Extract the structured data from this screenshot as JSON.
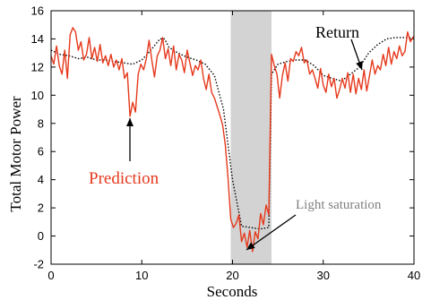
{
  "chart_data": {
    "type": "line",
    "title": "",
    "xlabel": "Seconds",
    "ylabel": "Total Motor Power",
    "xlim": [
      0,
      40
    ],
    "ylim": [
      -2,
      16
    ],
    "x_ticks": [
      0,
      10,
      20,
      30,
      40
    ],
    "y_ticks": [
      -2,
      0,
      2,
      4,
      6,
      8,
      10,
      12,
      14,
      16
    ],
    "grid": false,
    "legend": "none",
    "shaded_region": {
      "x_start": 19.8,
      "x_end": 24.3,
      "color": "#d3d3d3"
    },
    "series": [
      {
        "name": "Prediction",
        "color": "#e5391c",
        "style": "solid",
        "x": [
          0,
          0.3,
          0.6,
          0.9,
          1.2,
          1.5,
          1.8,
          2.1,
          2.4,
          2.7,
          3,
          3.3,
          3.6,
          3.9,
          4.2,
          4.5,
          4.8,
          5.1,
          5.4,
          5.7,
          6,
          6.3,
          6.6,
          6.9,
          7.2,
          7.5,
          7.8,
          8.1,
          8.4,
          8.7,
          9,
          9.3,
          9.6,
          9.9,
          10.2,
          10.5,
          10.8,
          11.1,
          11.4,
          11.7,
          12,
          12.3,
          12.6,
          12.9,
          13.2,
          13.5,
          13.8,
          14.1,
          14.4,
          14.7,
          15,
          15.3,
          15.6,
          15.9,
          16.2,
          16.5,
          16.8,
          17.1,
          17.4,
          17.7,
          18,
          18.3,
          18.6,
          18.9,
          19.2,
          19.5,
          19.8,
          20.1,
          20.4,
          20.7,
          21,
          21.3,
          21.6,
          21.9,
          22.2,
          22.5,
          22.8,
          23.1,
          23.4,
          23.7,
          24,
          24.3,
          24.6,
          24.9,
          25.2,
          25.5,
          25.8,
          26.1,
          26.4,
          26.7,
          27,
          27.3,
          27.6,
          27.9,
          28.2,
          28.5,
          28.8,
          29.1,
          29.4,
          29.7,
          30,
          30.3,
          30.6,
          30.9,
          31.2,
          31.5,
          31.8,
          32.1,
          32.4,
          32.7,
          33,
          33.3,
          33.6,
          33.9,
          34.2,
          34.5,
          34.8,
          35.1,
          35.4,
          35.7,
          36,
          36.3,
          36.6,
          36.9,
          37.2,
          37.5,
          37.8,
          38.1,
          38.4,
          38.7,
          39,
          39.3,
          39.6,
          40
        ],
        "y": [
          12.8,
          12.2,
          13.5,
          12.1,
          11.5,
          13.2,
          11.2,
          14.3,
          14.8,
          14.5,
          13.2,
          13.8,
          12.5,
          12.9,
          14.1,
          12.6,
          13.4,
          12.4,
          13.6,
          12.3,
          12.8,
          12.1,
          12.9,
          12,
          12.5,
          11.8,
          12.6,
          11.2,
          11.6,
          8.5,
          9.5,
          8.8,
          11.5,
          12.2,
          11.8,
          12.6,
          13.9,
          12.5,
          11.3,
          12.8,
          13.2,
          14.1,
          12.6,
          13.3,
          12.1,
          13.5,
          11.8,
          12.9,
          12.5,
          11.6,
          13.2,
          12.3,
          11.4,
          12.1,
          11.8,
          12.5,
          11.2,
          10.4,
          11.5,
          10.2,
          9.8,
          9.2,
          8.6,
          7.9,
          6.5,
          4.2,
          1.2,
          0.6,
          0.9,
          1.5,
          -0.4,
          0.2,
          -0.8,
          0.4,
          -1.1,
          0.3,
          -0.2,
          1.6,
          0.8,
          2.2,
          1.5,
          12.9,
          12.1,
          11.5,
          9.8,
          11.4,
          12.3,
          11,
          12.6,
          12.4,
          13.1,
          12.8,
          13.4,
          12.3,
          12.5,
          11.5,
          11.8,
          11.2,
          10.5,
          11.9,
          10.7,
          10.2,
          11.5,
          10.6,
          11.2,
          9.8,
          10.4,
          11.2,
          10.5,
          11.6,
          10.2,
          11.5,
          10.1,
          11.2,
          10.4,
          11.8,
          10.3,
          11.4,
          12.5,
          11.5,
          12.1,
          11.8,
          12.9,
          12.1,
          13.4,
          12.2,
          13.1,
          12.6,
          13.5,
          12.8,
          13.1,
          14.5,
          13.8,
          14.2
        ]
      },
      {
        "name": "Return",
        "color": "#000000",
        "style": "dotted",
        "x": [
          0,
          1,
          2,
          3,
          4,
          5,
          6,
          7,
          8,
          9,
          10,
          11,
          12,
          12.5,
          13,
          14,
          15,
          16,
          17,
          18,
          19,
          20,
          21,
          22,
          23,
          24,
          24.3,
          25,
          26,
          27,
          28,
          29,
          30,
          31,
          32,
          33,
          34,
          35,
          36,
          37,
          38,
          39,
          40
        ],
        "y": [
          13.2,
          12.9,
          12.8,
          12.6,
          12.7,
          12.5,
          12.5,
          12.4,
          12.3,
          12.2,
          12.5,
          13.2,
          14,
          14,
          13.4,
          13,
          12.7,
          12.5,
          12.2,
          11.4,
          9,
          4,
          0.7,
          0.6,
          0.5,
          0.6,
          11.5,
          12.2,
          12.4,
          12.5,
          12.5,
          12.1,
          11.4,
          11.2,
          11,
          11.5,
          12,
          13,
          13.6,
          14,
          14.1,
          14.1,
          14.1
        ]
      }
    ],
    "annotations": [
      {
        "text": "Prediction",
        "color": "#e5391c"
      },
      {
        "text": "Return",
        "color": "#000000"
      },
      {
        "text": "Light saturation",
        "color": "#808080"
      }
    ]
  }
}
